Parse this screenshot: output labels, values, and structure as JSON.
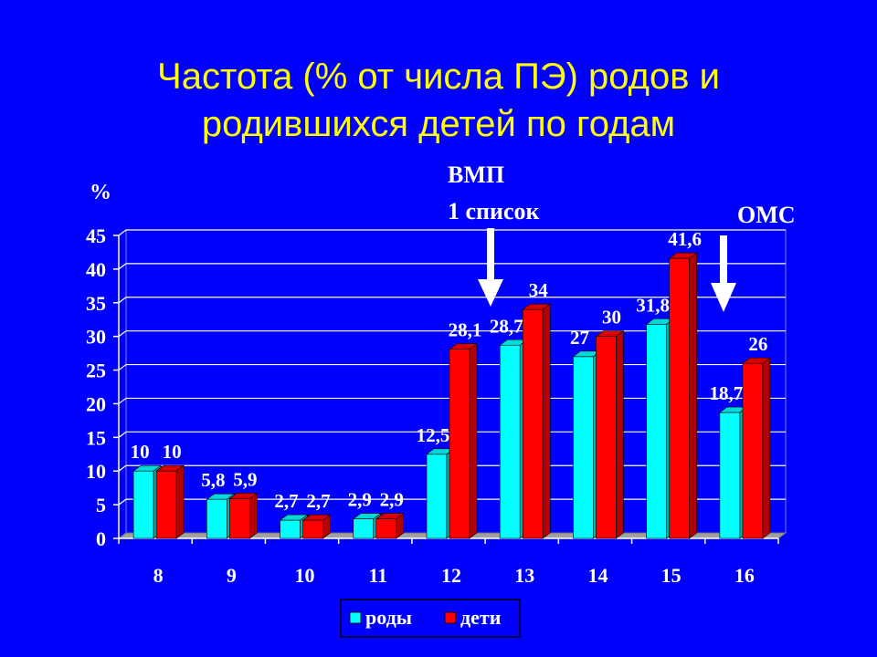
{
  "title": {
    "line1": "Частота (% от числа ПЭ)  родов и",
    "line2": "родившихся детей по годам"
  },
  "annotations": {
    "vmp_line1": "ВМП",
    "vmp_line2": "1 список",
    "oms": "ОМС"
  },
  "colors": {
    "background": "#0000ff",
    "title": "#ffff00",
    "series_rody": "#00ffff",
    "series_deti": "#ff0000"
  },
  "chart_data": {
    "type": "bar",
    "ylabel": "%",
    "ylim": [
      0,
      45
    ],
    "yticks": [
      0,
      5,
      10,
      15,
      20,
      25,
      30,
      35,
      40,
      45
    ],
    "grid": true,
    "legend": "bottom",
    "categories": [
      "8",
      "9",
      "10",
      "11",
      "12",
      "13",
      "14",
      "15",
      "16"
    ],
    "series": [
      {
        "name": "роды",
        "values": [
          10,
          5.8,
          2.7,
          2.9,
          12.5,
          28.7,
          27,
          31.8,
          18.7
        ],
        "labels": [
          "10",
          "5,8",
          "2,7",
          "2,9",
          "12,5",
          "28,7",
          "27",
          "31,8",
          "18,7"
        ]
      },
      {
        "name": "дети",
        "values": [
          10,
          5.9,
          2.7,
          2.9,
          28.1,
          34,
          30,
          41.6,
          26
        ],
        "labels": [
          "10",
          "5,9",
          "2,7",
          "2,9",
          "28,1",
          "34",
          "30",
          "41,6",
          "26"
        ]
      }
    ]
  }
}
